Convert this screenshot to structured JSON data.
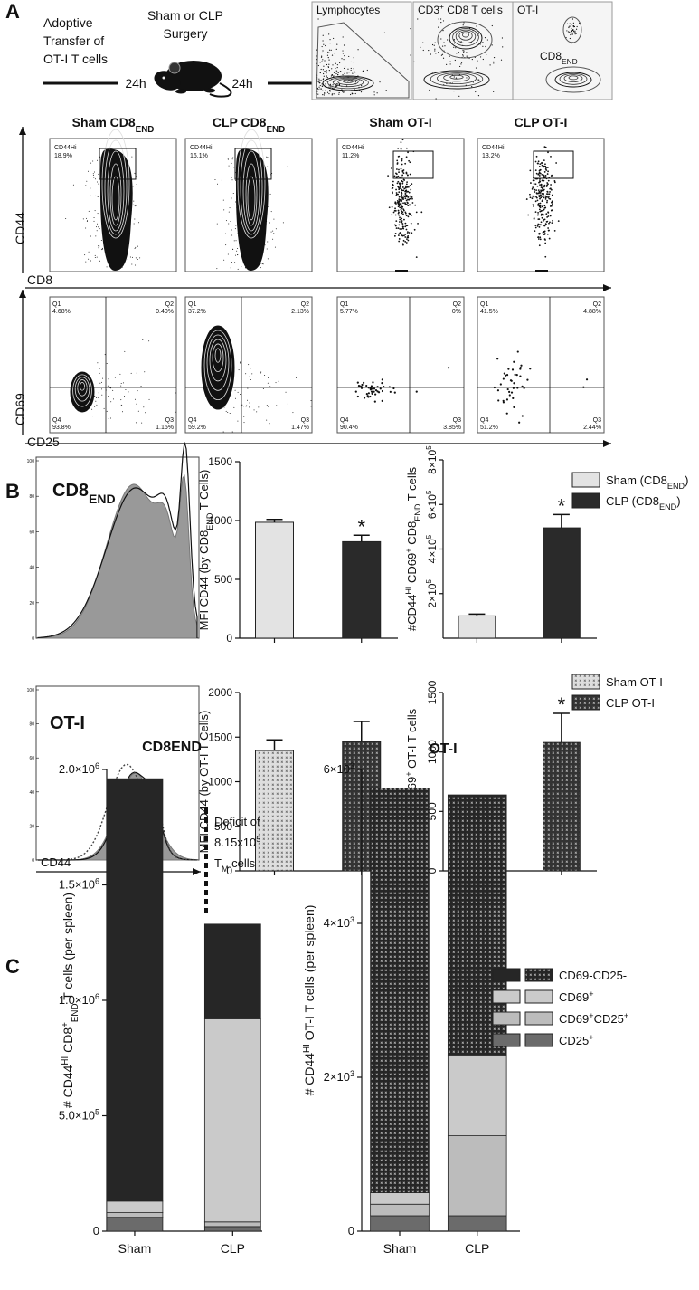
{
  "panel_labels": [
    "A",
    "B",
    "C"
  ],
  "schematic": {
    "transfer": [
      "Adoptive",
      "Transfer of",
      "OT-I T cells"
    ],
    "surgery": [
      "Sham or CLP",
      "Surgery"
    ],
    "intervals": [
      "24h",
      "24h"
    ],
    "gates": [
      "Lymphocytes",
      [
        {
          "text": "CD3"
        },
        {
          "text": "+",
          "pos": "sup"
        },
        {
          "text": " CD8 T cells"
        }
      ],
      "OT-I"
    ],
    "endogenous_gate": [
      {
        "text": "CD8"
      },
      {
        "text": "END",
        "pos": "sub"
      }
    ]
  },
  "flow": {
    "titles": [
      [
        {
          "text": "Sham CD8"
        },
        {
          "text": "END",
          "pos": "sub"
        }
      ],
      [
        {
          "text": "CLP CD8"
        },
        {
          "text": "END",
          "pos": "sub"
        }
      ],
      "Sham OT-I",
      "CLP OT-I"
    ],
    "gate_name": "CD44Hi",
    "gate_percent": [
      "18.9%",
      "16.1%",
      "11.2%",
      "13.2%"
    ],
    "axes": [
      "CD44",
      "CD8",
      "CD69",
      "CD25"
    ],
    "quadrant_names": [
      "Q1",
      "Q2",
      "Q3",
      "Q4"
    ],
    "quadrant_percent": [
      [
        "4.68%",
        "0.40%",
        "1.15%",
        "93.8%"
      ],
      [
        "37.2%",
        "2.13%",
        "1.47%",
        "59.2%"
      ],
      [
        "5.77%",
        "0%",
        "3.85%",
        "90.4%"
      ],
      [
        "41.5%",
        "4.88%",
        "2.44%",
        "51.2%"
      ]
    ]
  },
  "histograms": {
    "labels": [
      [
        {
          "text": "CD8"
        },
        {
          "text": "END",
          "pos": "sub"
        }
      ],
      "OT-I"
    ],
    "xlabel": "CD44",
    "yticks": [
      0,
      20,
      40,
      60,
      80,
      100
    ]
  },
  "chart_data": [
    {
      "type": "bar",
      "ylabel": [
        {
          "text": "MFI CD44 (by CD8"
        },
        {
          "text": "END",
          "pos": "sub"
        },
        {
          "text": " T Cells)"
        }
      ],
      "ylim": [
        0,
        1500
      ],
      "yticks": [
        0,
        500,
        1000,
        1500
      ],
      "series": [
        {
          "name": [
            {
              "text": "Sham (CD8"
            },
            {
              "text": "END",
              "pos": "sub"
            },
            {
              "text": ")"
            }
          ],
          "color": "#e3e3e3",
          "values": [
            985
          ],
          "errors": [
            25
          ]
        },
        {
          "name": [
            {
              "text": "CLP (CD8"
            },
            {
              "text": "END",
              "pos": "sub"
            },
            {
              "text": ")"
            }
          ],
          "color": "#2a2a2a",
          "values": [
            820
          ],
          "errors": [
            55
          ]
        }
      ],
      "annotations": [
        {
          "text": "*",
          "series": 1
        }
      ]
    },
    {
      "type": "bar",
      "ylabel": [
        {
          "text": "#CD44"
        },
        {
          "text": "HI",
          "pos": "sup"
        },
        {
          "text": " CD69"
        },
        {
          "text": "+",
          "pos": "sup"
        },
        {
          "text": " CD8"
        },
        {
          "text": "END",
          "pos": "sub"
        },
        {
          "text": " T cells"
        }
      ],
      "ylim": [
        0,
        800000
      ],
      "yticks": [
        {
          "value": 200000,
          "label": [
            {
              "text": "2×10"
            },
            {
              "text": "5",
              "pos": "sup"
            }
          ]
        },
        {
          "value": 400000,
          "label": [
            {
              "text": "4×10"
            },
            {
              "text": "5",
              "pos": "sup"
            }
          ]
        },
        {
          "value": 600000,
          "label": [
            {
              "text": "6×10"
            },
            {
              "text": "5",
              "pos": "sup"
            }
          ]
        },
        {
          "value": 800000,
          "label": [
            {
              "text": "8×10"
            },
            {
              "text": "5",
              "pos": "sup"
            }
          ]
        }
      ],
      "series": [
        {
          "color": "#e3e3e3",
          "values": [
            100000
          ],
          "errors": [
            8000
          ]
        },
        {
          "color": "#2a2a2a",
          "values": [
            495000
          ],
          "errors": [
            60000
          ]
        }
      ],
      "annotations": [
        {
          "text": "*",
          "series": 1
        }
      ]
    },
    {
      "type": "bar",
      "ylabel": "MFI CD44 (by OT-I T Cells)",
      "ylim": [
        0,
        2000
      ],
      "yticks": [
        0,
        500,
        1000,
        1500,
        2000
      ],
      "series": [
        {
          "name": "Sham OT-I",
          "color": "#dedede",
          "hatch": true,
          "values": [
            1350
          ],
          "errors": [
            120
          ]
        },
        {
          "name": "CLP OT-I",
          "color": "#333333",
          "hatch": true,
          "values": [
            1450
          ],
          "errors": [
            225
          ]
        }
      ]
    },
    {
      "type": "bar",
      "ylabel": [
        {
          "text": "#CD44"
        },
        {
          "text": "HI",
          "pos": "sup"
        },
        {
          "text": " CD69"
        },
        {
          "text": "+",
          "pos": "sup"
        },
        {
          "text": " OT-I  T cells"
        }
      ],
      "ylim": [
        0,
        1500
      ],
      "yticks": [
        0,
        500,
        1000,
        1500
      ],
      "series": [
        {
          "color": "#dedede",
          "hatch": true,
          "values": [
            100
          ],
          "errors": [
            60
          ]
        },
        {
          "color": "#333333",
          "hatch": true,
          "values": [
            1080
          ],
          "errors": [
            245
          ]
        }
      ],
      "annotations": [
        {
          "text": "*",
          "series": 1
        }
      ]
    },
    {
      "type": "stacked_bar",
      "title": "CD8END",
      "ylabel": [
        {
          "text": "# CD44"
        },
        {
          "text": "HI",
          "pos": "sup"
        },
        {
          "text": " CD8"
        },
        {
          "text": "+",
          "pos": "sup"
        },
        {
          "text": "END",
          "pos": "sub"
        },
        {
          "text": " T cells (per spleen)"
        }
      ],
      "categories": [
        "Sham",
        "CLP"
      ],
      "ylim": [
        0,
        2000000
      ],
      "yticks": [
        0,
        {
          "value": 500000,
          "label": [
            {
              "text": "5.0×10"
            },
            {
              "text": "5",
              "pos": "sup"
            }
          ]
        },
        {
          "value": 1000000,
          "label": [
            {
              "text": "1.0×10"
            },
            {
              "text": "6",
              "pos": "sup"
            }
          ]
        },
        {
          "value": 1500000,
          "label": [
            {
              "text": "1.5×10"
            },
            {
              "text": "6",
              "pos": "sup"
            }
          ]
        },
        {
          "value": 2000000,
          "label": [
            {
              "text": "2.0×10"
            },
            {
              "text": "6",
              "pos": "sup"
            }
          ]
        }
      ],
      "series": [
        {
          "name": [
            {
              "text": "CD25"
            },
            {
              "text": "+",
              "pos": "sup"
            }
          ],
          "color": "#6b6b6b",
          "values": [
            60000,
            20000
          ]
        },
        {
          "name": [
            {
              "text": "CD69"
            },
            {
              "text": "+",
              "pos": "sup"
            },
            {
              "text": "CD25"
            },
            {
              "text": "+",
              "pos": "sup"
            }
          ],
          "color": "#bcbcbc",
          "values": [
            20000,
            20000
          ]
        },
        {
          "name": [
            {
              "text": "CD69"
            },
            {
              "text": "+",
              "pos": "sup"
            }
          ],
          "color": "#cacaca",
          "values": [
            50000,
            880000
          ]
        },
        {
          "name": "CD69-CD25-",
          "color": "#262626",
          "values": [
            1830000,
            410000
          ]
        }
      ],
      "annotation_lines": [
        [
          "Deficit of"
        ],
        [
          {
            "text": "8.15x10"
          },
          {
            "text": "5",
            "pos": "sup"
          }
        ],
        [
          {
            "text": "T"
          },
          {
            "text": "M",
            "pos": "sub"
          },
          {
            "text": " cells"
          }
        ]
      ]
    },
    {
      "type": "stacked_bar",
      "title": "OT-I",
      "ylabel": [
        {
          "text": "# CD44"
        },
        {
          "text": "HI",
          "pos": "sup"
        },
        {
          "text": " OT-I T cells (per spleen)"
        }
      ],
      "categories": [
        "Sham",
        "CLP"
      ],
      "ylim": [
        0,
        6000
      ],
      "yticks": [
        0,
        {
          "value": 2000,
          "label": [
            {
              "text": "2×10"
            },
            {
              "text": "3",
              "pos": "sup"
            }
          ]
        },
        {
          "value": 4000,
          "label": [
            {
              "text": "4×10"
            },
            {
              "text": "3",
              "pos": "sup"
            }
          ]
        },
        {
          "value": 6000,
          "label": [
            {
              "text": "6×10"
            },
            {
              "text": "3",
              "pos": "sup"
            }
          ]
        }
      ],
      "series": [
        {
          "color": "#6b6b6b",
          "values": [
            200,
            200
          ]
        },
        {
          "color": "#bcbcbc",
          "values": [
            150,
            1040
          ]
        },
        {
          "color": "#cacaca",
          "values": [
            150,
            1050
          ]
        },
        {
          "color": "#262626",
          "hatch": true,
          "values": [
            5260,
            3380
          ]
        }
      ]
    }
  ]
}
